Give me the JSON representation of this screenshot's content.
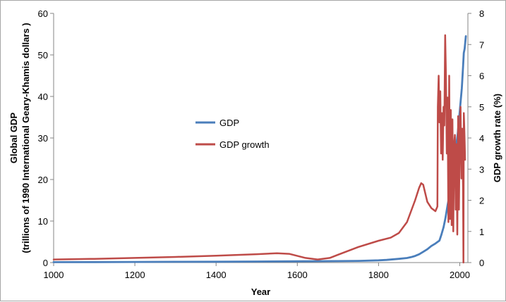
{
  "chart_data": {
    "type": "line",
    "xlabel": "Year",
    "ylabel_left_line1": "Global GDP",
    "ylabel_left_line2": "(trillions of 1990 International Geary-Khamis dollars )",
    "ylabel_right": "GDP growth rate (%)",
    "xlim": [
      1000,
      2020
    ],
    "ylim_left": [
      0,
      60
    ],
    "ylim_right": [
      0,
      8
    ],
    "x_ticks": [
      1000,
      1200,
      1400,
      1600,
      1800,
      2000
    ],
    "y_left_ticks": [
      0,
      10,
      20,
      30,
      40,
      50,
      60
    ],
    "y_right_ticks": [
      0,
      1,
      2,
      3,
      4,
      5,
      6,
      7,
      8
    ],
    "grid": false,
    "legend_position": "center",
    "series": [
      {
        "name": "GDP",
        "axis": "left",
        "color": "#4a7ebb",
        "x": [
          1000,
          1100,
          1200,
          1300,
          1400,
          1500,
          1600,
          1700,
          1750,
          1800,
          1820,
          1850,
          1870,
          1880,
          1890,
          1900,
          1910,
          1920,
          1930,
          1940,
          1950,
          1955,
          1960,
          1965,
          1970,
          1975,
          1980,
          1985,
          1990,
          1995,
          2000,
          2005,
          2008,
          2010,
          2012,
          2015
        ],
        "y": [
          0.1,
          0.12,
          0.15,
          0.18,
          0.2,
          0.25,
          0.3,
          0.35,
          0.4,
          0.55,
          0.65,
          0.9,
          1.1,
          1.3,
          1.6,
          2.0,
          2.6,
          3.2,
          4.0,
          4.6,
          5.3,
          6.8,
          8.5,
          10.8,
          13.8,
          16.5,
          19.8,
          23,
          27,
          31,
          36.5,
          42,
          47,
          50.5,
          51.5,
          54.5
        ]
      },
      {
        "name": "GDP growth",
        "axis": "right",
        "color": "#be4b48",
        "x": [
          1000,
          1100,
          1200,
          1300,
          1400,
          1500,
          1550,
          1580,
          1620,
          1650,
          1680,
          1700,
          1750,
          1800,
          1830,
          1850,
          1870,
          1890,
          1900,
          1905,
          1910,
          1920,
          1930,
          1940,
          1945,
          1946,
          1948,
          1950,
          1952,
          1954,
          1956,
          1958,
          1960,
          1962,
          1964,
          1966,
          1968,
          1970,
          1972,
          1974,
          1976,
          1978,
          1980,
          1982,
          1984,
          1986,
          1988,
          1990,
          1992,
          1994,
          1996,
          1998,
          2000,
          2002,
          2004,
          2006,
          2008,
          2009,
          2010,
          2011,
          2012,
          2013
        ],
        "y": [
          0.1,
          0.12,
          0.15,
          0.18,
          0.22,
          0.27,
          0.3,
          0.28,
          0.15,
          0.1,
          0.15,
          0.25,
          0.5,
          0.7,
          0.8,
          0.95,
          1.3,
          2.0,
          2.4,
          2.55,
          2.5,
          1.95,
          1.75,
          1.65,
          1.8,
          5.0,
          6.0,
          4.5,
          5.5,
          3.5,
          4.8,
          3.3,
          5.0,
          4.4,
          7.3,
          6.0,
          3.5,
          5.3,
          1.3,
          6.0,
          1.4,
          4.9,
          1.2,
          4.6,
          1.0,
          3.8,
          4.1,
          1.7,
          3.8,
          0.9,
          4.7,
          1.7,
          4.2,
          5.0,
          2.7,
          4.3,
          2.4,
          0.0,
          4.8,
          4.4,
          3.9,
          3.3
        ]
      }
    ]
  }
}
